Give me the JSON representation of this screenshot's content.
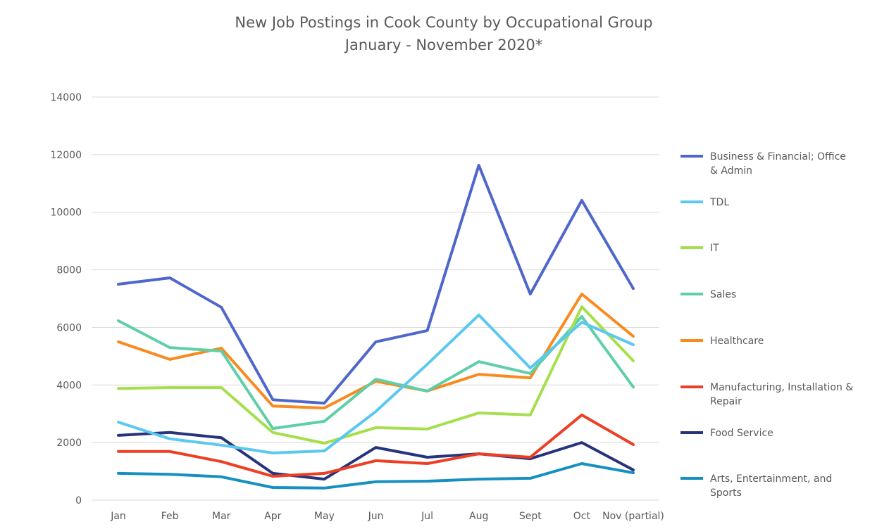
{
  "chart_data": {
    "type": "line",
    "title": "New Job Postings in Cook County by Occupational Group",
    "subtitle": "January - November 2020*",
    "xlabel": "",
    "ylabel": "",
    "categories": [
      "Jan",
      "Feb",
      "Mar",
      "Apr",
      "May",
      "Jun",
      "Jul",
      "Aug",
      "Sept",
      "Oct",
      "Nov (partial)"
    ],
    "ylim": [
      0,
      14000
    ],
    "yticks": [
      0,
      2000,
      4000,
      6000,
      8000,
      10000,
      12000,
      14000
    ],
    "grid": true,
    "legend_position": "right",
    "series": [
      {
        "name": "Business & Financial; Office & Admin",
        "legend_lines": [
          "Business & Financial; Office",
          "& Admin"
        ],
        "color": "#4f67cc",
        "values": [
          7500,
          7720,
          6700,
          3490,
          3370,
          5500,
          5890,
          11630,
          7160,
          10410,
          7350
        ]
      },
      {
        "name": "TDL",
        "legend_lines": [
          "TDL"
        ],
        "color": "#5bc8f0",
        "values": [
          2710,
          2130,
          1910,
          1640,
          1710,
          3080,
          4720,
          6430,
          4590,
          6180,
          5400
        ]
      },
      {
        "name": "IT",
        "legend_lines": [
          "IT"
        ],
        "color": "#a5e04c",
        "values": [
          3880,
          3910,
          3910,
          2350,
          1980,
          2520,
          2470,
          3030,
          2960,
          6720,
          4840
        ]
      },
      {
        "name": "Sales",
        "legend_lines": [
          "Sales"
        ],
        "color": "#5fcfa8",
        "values": [
          6230,
          5300,
          5180,
          2490,
          2740,
          4200,
          3790,
          4810,
          4400,
          6380,
          3930
        ]
      },
      {
        "name": "Healthcare",
        "legend_lines": [
          "Healthcare"
        ],
        "color": "#f98a1e",
        "values": [
          5500,
          4890,
          5280,
          3270,
          3200,
          4130,
          3790,
          4370,
          4250,
          7160,
          5690
        ]
      },
      {
        "name": "Manufacturing, Installation & Repair",
        "legend_lines": [
          "Manufacturing, Installation &",
          "Repair"
        ],
        "color": "#ee3e24",
        "values": [
          1690,
          1690,
          1340,
          830,
          930,
          1370,
          1270,
          1610,
          1490,
          2960,
          1930
        ]
      },
      {
        "name": "Food Service",
        "legend_lines": [
          "Food Service"
        ],
        "color": "#27347a",
        "values": [
          2250,
          2350,
          2170,
          930,
          730,
          1830,
          1490,
          1610,
          1440,
          2000,
          1050
        ]
      },
      {
        "name": "Arts, Entertainment, and Sports",
        "legend_lines": [
          "Arts, Entertainment, and",
          "Sports"
        ],
        "color": "#1590c0",
        "values": [
          930,
          900,
          810,
          440,
          420,
          640,
          660,
          730,
          760,
          1270,
          950
        ]
      }
    ]
  }
}
